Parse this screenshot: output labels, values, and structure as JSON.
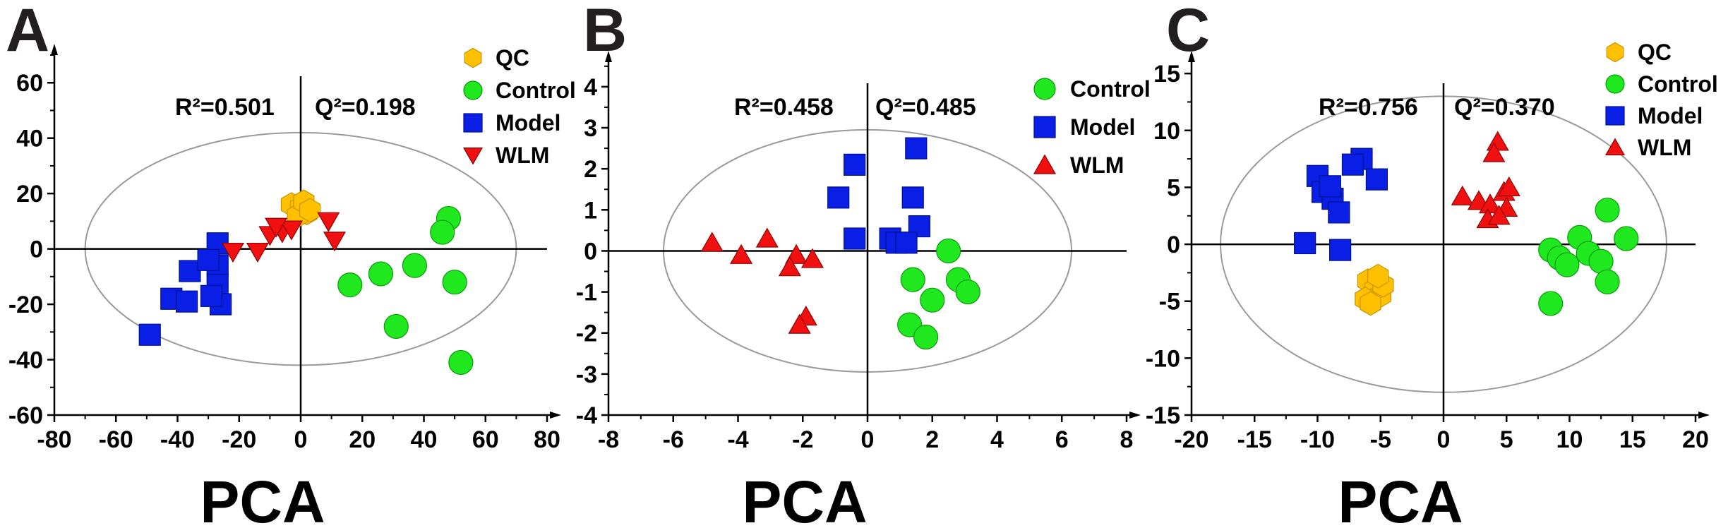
{
  "colors": {
    "qc": "#ffc000",
    "qc_stroke": "#c89400",
    "control": "#1fe81f",
    "control_stroke": "#0a9a0a",
    "model": "#0a1fe6",
    "model_stroke": "#00108a",
    "wlm": "#f01010",
    "wlm_stroke": "#900000",
    "ellipse": "#9a9a9a",
    "axis": "#000000"
  },
  "chart_data": [
    {
      "panel": "A",
      "type": "scatter",
      "xlabel": "PCA",
      "r2": "R²=0.501",
      "q2": "Q²=0.198",
      "xlim": [
        -80,
        80
      ],
      "ylim": [
        -60,
        70
      ],
      "xticks": [
        -80,
        -60,
        -40,
        -20,
        0,
        20,
        40,
        60,
        80
      ],
      "yticks": [
        -60,
        -40,
        -20,
        0,
        20,
        40,
        60
      ],
      "ellipse": {
        "cx": 0,
        "cy": 0,
        "rx": 70,
        "ry": 42
      },
      "legend": [
        {
          "label": "QC",
          "group": "qc",
          "shape": "hexagon"
        },
        {
          "label": "Control",
          "group": "control",
          "shape": "circle"
        },
        {
          "label": "Model",
          "group": "model",
          "shape": "square"
        },
        {
          "label": "WLM",
          "group": "wlm",
          "shape": "triangle-down"
        }
      ],
      "series": [
        {
          "name": "QC",
          "group": "qc",
          "shape": "hexagon",
          "points": [
            [
              -3,
              16
            ],
            [
              0,
              15
            ],
            [
              2,
              13
            ],
            [
              -1,
              12
            ],
            [
              1,
              17
            ],
            [
              3,
              14
            ]
          ]
        },
        {
          "name": "Control",
          "group": "control",
          "shape": "circle",
          "points": [
            [
              48,
              11
            ],
            [
              46,
              6
            ],
            [
              37,
              -6
            ],
            [
              26,
              -9
            ],
            [
              16,
              -13
            ],
            [
              50,
              -12
            ],
            [
              31,
              -28
            ],
            [
              52,
              -41
            ]
          ]
        },
        {
          "name": "Model",
          "group": "model",
          "shape": "square",
          "points": [
            [
              -27,
              2
            ],
            [
              -27,
              -6
            ],
            [
              -36,
              -8
            ],
            [
              -27,
              -13
            ],
            [
              -42,
              -18
            ],
            [
              -37,
              -19
            ],
            [
              -26,
              -20
            ],
            [
              -29,
              -17
            ],
            [
              -49,
              -31
            ],
            [
              -30,
              -4
            ]
          ]
        },
        {
          "name": "WLM",
          "group": "wlm",
          "shape": "triangle-down",
          "points": [
            [
              -22,
              -1
            ],
            [
              -14,
              -1
            ],
            [
              -10,
              5
            ],
            [
              -6,
              6
            ],
            [
              -3,
              7
            ],
            [
              9,
              10
            ],
            [
              11,
              3
            ],
            [
              -8,
              8
            ]
          ]
        }
      ]
    },
    {
      "panel": "B",
      "type": "scatter",
      "xlabel": "PCA",
      "r2": "R²=0.458",
      "q2": "Q²=0.485",
      "xlim": [
        -8,
        8
      ],
      "ylim": [
        -4,
        4.6
      ],
      "xticks": [
        -8,
        -6,
        -4,
        -2,
        0,
        2,
        4,
        6,
        8
      ],
      "yticks": [
        -4,
        -3,
        -2,
        -1,
        0,
        1,
        2,
        3,
        4
      ],
      "ellipse": {
        "cx": 0,
        "cy": 0,
        "rx": 6.3,
        "ry": 2.95
      },
      "legend": [
        {
          "label": "Control",
          "group": "control",
          "shape": "circle"
        },
        {
          "label": "Model",
          "group": "model",
          "shape": "square"
        },
        {
          "label": "WLM",
          "group": "wlm",
          "shape": "triangle-up"
        }
      ],
      "series": [
        {
          "name": "Control",
          "group": "control",
          "shape": "circle",
          "points": [
            [
              2.5,
              0.0
            ],
            [
              2.8,
              -0.7
            ],
            [
              1.4,
              -0.7
            ],
            [
              3.1,
              -1.0
            ],
            [
              2.0,
              -1.2
            ],
            [
              1.3,
              -1.8
            ],
            [
              1.8,
              -2.1
            ]
          ]
        },
        {
          "name": "Model",
          "group": "model",
          "shape": "square",
          "points": [
            [
              -0.4,
              2.1
            ],
            [
              1.5,
              2.5
            ],
            [
              -0.9,
              1.3
            ],
            [
              1.4,
              1.3
            ],
            [
              1.6,
              0.6
            ],
            [
              -0.4,
              0.3
            ],
            [
              0.7,
              0.3
            ],
            [
              0.9,
              0.2
            ],
            [
              1.2,
              0.2
            ]
          ]
        },
        {
          "name": "WLM",
          "group": "wlm",
          "shape": "triangle-up",
          "points": [
            [
              -4.8,
              0.2
            ],
            [
              -3.1,
              0.3
            ],
            [
              -3.9,
              -0.1
            ],
            [
              -2.2,
              -0.1
            ],
            [
              -2.4,
              -0.4
            ],
            [
              -1.7,
              -0.2
            ],
            [
              -1.9,
              -1.6
            ],
            [
              -2.1,
              -1.8
            ]
          ]
        }
      ]
    },
    {
      "panel": "C",
      "type": "scatter",
      "xlabel": "PCA",
      "r2": "R²=0.756",
      "q2": "Q²=0.370",
      "xlim": [
        -20,
        20
      ],
      "ylim": [
        -15,
        16
      ],
      "xticks": [
        -20,
        -15,
        -10,
        -5,
        0,
        5,
        10,
        15,
        20
      ],
      "yticks": [
        -15,
        -10,
        -5,
        0,
        5,
        10,
        15
      ],
      "ellipse": {
        "cx": 0,
        "cy": 0,
        "rx": 17.7,
        "ry": 13.0
      },
      "legend": [
        {
          "label": "QC",
          "group": "qc",
          "shape": "hexagon"
        },
        {
          "label": "Control",
          "group": "control",
          "shape": "circle"
        },
        {
          "label": "Model",
          "group": "model",
          "shape": "square"
        },
        {
          "label": "WLM",
          "group": "wlm",
          "shape": "triangle-up"
        }
      ],
      "series": [
        {
          "name": "QC",
          "group": "qc",
          "shape": "hexagon",
          "points": [
            [
              -6.0,
              -3.2
            ],
            [
              -5.5,
              -4.0
            ],
            [
              -5.0,
              -4.5
            ],
            [
              -6.2,
              -4.8
            ],
            [
              -4.8,
              -3.6
            ],
            [
              -5.8,
              -5.2
            ],
            [
              -5.2,
              -2.8
            ]
          ]
        },
        {
          "name": "Control",
          "group": "control",
          "shape": "circle",
          "points": [
            [
              13.0,
              3.0
            ],
            [
              10.8,
              0.6
            ],
            [
              14.5,
              0.5
            ],
            [
              8.5,
              -0.5
            ],
            [
              9.2,
              -1.2
            ],
            [
              9.8,
              -1.8
            ],
            [
              11.5,
              -0.8
            ],
            [
              12.5,
              -1.5
            ],
            [
              13.0,
              -3.3
            ],
            [
              8.5,
              -5.2
            ]
          ]
        },
        {
          "name": "Model",
          "group": "model",
          "shape": "square",
          "points": [
            [
              -6.5,
              7.5
            ],
            [
              -7.2,
              7.0
            ],
            [
              -10.0,
              6.0
            ],
            [
              -9.6,
              4.6
            ],
            [
              -8.8,
              4.0
            ],
            [
              -8.3,
              2.8
            ],
            [
              -5.3,
              5.7
            ],
            [
              -11.0,
              0.1
            ],
            [
              -8.2,
              -0.5
            ],
            [
              -9.0,
              5.1
            ]
          ]
        },
        {
          "name": "WLM",
          "group": "wlm",
          "shape": "triangle-up",
          "points": [
            [
              4.3,
              9.0
            ],
            [
              4.0,
              8.0
            ],
            [
              1.5,
              4.2
            ],
            [
              2.8,
              3.8
            ],
            [
              3.7,
              3.5
            ],
            [
              4.8,
              4.6
            ],
            [
              5.0,
              3.2
            ],
            [
              3.5,
              2.2
            ],
            [
              4.4,
              2.5
            ],
            [
              5.2,
              5.0
            ]
          ]
        }
      ]
    }
  ]
}
